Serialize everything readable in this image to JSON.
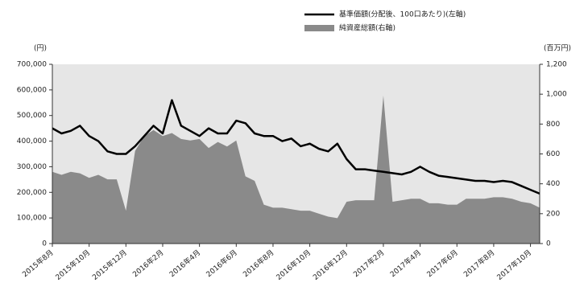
{
  "chart_data": {
    "type": "line-area",
    "y_unit": "(円)",
    "y2_unit": "(百万円)",
    "categories": [
      "2015年8月",
      null,
      null,
      null,
      "2015年10月",
      null,
      null,
      null,
      "2015年12月",
      null,
      null,
      null,
      "2016年2月",
      null,
      null,
      null,
      "2016年4月",
      null,
      null,
      null,
      "2016年6月",
      null,
      null,
      null,
      "2016年8月",
      null,
      null,
      null,
      "2016年10月",
      null,
      null,
      null,
      "2016年12月",
      null,
      null,
      null,
      "2017年2月",
      null,
      null,
      null,
      "2017年4月",
      null,
      null,
      null,
      "2017年6月",
      null,
      null,
      null,
      "2017年8月",
      null,
      null,
      null,
      "2017年10月",
      null
    ],
    "series": [
      {
        "name": "基準価額(分配後、100口あたり)(左軸)",
        "color": "#000000",
        "kind": "line",
        "values": [
          450000,
          430000,
          440000,
          460000,
          420000,
          400000,
          360000,
          350000,
          350000,
          380000,
          420000,
          460000,
          430000,
          560000,
          460000,
          440000,
          420000,
          450000,
          430000,
          430000,
          480000,
          470000,
          430000,
          420000,
          420000,
          400000,
          410000,
          380000,
          390000,
          370000,
          360000,
          390000,
          330000,
          290000,
          290000,
          285000,
          280000,
          275000,
          270000,
          280000,
          300000,
          280000,
          265000,
          260000,
          255000,
          250000,
          245000,
          245000,
          240000,
          245000,
          240000,
          225000,
          210000,
          195000
        ]
      },
      {
        "name": "純資産総額(右軸)",
        "color": "#8a8a8a",
        "kind": "area",
        "axis": "y2",
        "values": [
          480,
          460,
          480,
          470,
          440,
          460,
          430,
          430,
          220,
          620,
          720,
          760,
          720,
          740,
          700,
          690,
          700,
          640,
          680,
          650,
          690,
          450,
          420,
          260,
          240,
          240,
          230,
          220,
          220,
          200,
          180,
          170,
          280,
          290,
          290,
          290,
          990,
          280,
          290,
          300,
          300,
          270,
          270,
          260,
          260,
          300,
          300,
          300,
          310,
          310,
          300,
          280,
          270,
          240
        ]
      }
    ],
    "ylim": [
      0,
      700000
    ],
    "yticks": [
      0,
      {
        "value": 100000,
        "label": "100,000"
      },
      {
        "value": 200000,
        "label": "200,000"
      },
      {
        "value": 300000,
        "label": "300,000"
      },
      {
        "value": 400000,
        "label": "400,000"
      },
      {
        "value": 500000,
        "label": "500,000"
      },
      {
        "value": 600000,
        "label": "600,000"
      },
      {
        "value": 700000,
        "label": "700,000"
      }
    ],
    "y2lim": [
      0,
      1200
    ],
    "y2ticks": [
      0,
      200,
      400,
      600,
      800,
      {
        "value": 1000,
        "label": "1,000"
      },
      {
        "value": 1200,
        "label": "1,200"
      }
    ],
    "background": "#e6e6e6"
  }
}
